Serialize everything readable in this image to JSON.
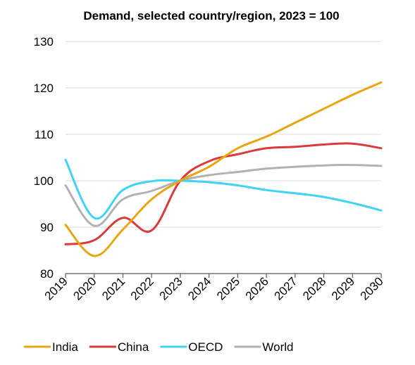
{
  "chart_data": {
    "type": "line",
    "title": "Demand, selected country/region, 2023 = 100",
    "xlabel": "",
    "ylabel": "",
    "x": [
      "2019",
      "2020",
      "2021",
      "2022",
      "2023",
      "2024",
      "2025",
      "2026",
      "2027",
      "2028",
      "2029",
      "2030"
    ],
    "ylim": [
      80,
      130
    ],
    "yticks": [
      80,
      90,
      100,
      110,
      120,
      130
    ],
    "grid": "horizontal",
    "legend_position": "bottom",
    "series": [
      {
        "name": "India",
        "color": "#e8a50f",
        "values": [
          90.5,
          83.8,
          89.5,
          96.0,
          100.0,
          103.0,
          107.0,
          109.5,
          112.5,
          115.5,
          118.5,
          121.2
        ]
      },
      {
        "name": "China",
        "color": "#d93b3b",
        "values": [
          86.3,
          87.2,
          92.0,
          89.3,
          100.0,
          104.2,
          105.7,
          107.0,
          107.3,
          107.8,
          108.0,
          107.0
        ]
      },
      {
        "name": "OECD",
        "color": "#3fd3f5",
        "values": [
          104.5,
          92.0,
          98.0,
          99.9,
          100.0,
          99.7,
          99.0,
          98.0,
          97.3,
          96.5,
          95.2,
          93.6
        ]
      },
      {
        "name": "World",
        "color": "#b2b2b2",
        "values": [
          99.0,
          90.3,
          96.0,
          97.8,
          100.0,
          101.2,
          101.9,
          102.6,
          103.0,
          103.3,
          103.4,
          103.2
        ]
      }
    ]
  }
}
